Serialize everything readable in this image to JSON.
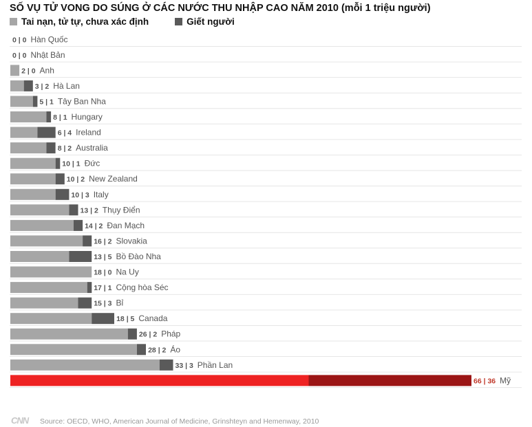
{
  "chart_data": {
    "type": "bar",
    "stacked": true,
    "orientation": "horizontal",
    "title": "SỐ VỤ TỬ VONG DO SÚNG Ở CÁC NƯỚC THU NHẬP CAO NĂM 2010 (mỗi 1 triệu người)",
    "series": [
      {
        "name": "Tai nạn, tử tự, chưa xác định",
        "color": "#a6a6a6",
        "highlight_color": "#ee2222",
        "values": [
          0,
          0,
          2,
          3,
          5,
          8,
          6,
          8,
          10,
          10,
          10,
          13,
          14,
          16,
          13,
          18,
          17,
          15,
          18,
          26,
          28,
          33,
          66
        ]
      },
      {
        "name": "Giết người",
        "color": "#5a5a5a",
        "highlight_color": "#9b1515",
        "values": [
          0,
          0,
          0,
          2,
          1,
          1,
          4,
          2,
          1,
          2,
          3,
          2,
          2,
          2,
          5,
          0,
          1,
          3,
          5,
          2,
          2,
          3,
          36
        ]
      }
    ],
    "categories": [
      "Hàn Quốc",
      "Nhật Bản",
      "Anh",
      "Hà Lan",
      "Tây Ban Nha",
      "Hungary",
      "Ireland",
      "Australia",
      "Đức",
      "New Zealand",
      "Italy",
      "Thụy Điển",
      "Đan Mạch",
      "Slovakia",
      "Bồ Đào Nha",
      "Na Uy",
      "Cộng hòa Séc",
      "Bỉ",
      "Canada",
      "Pháp",
      "Áo",
      "Phần Lan",
      "Mỹ"
    ],
    "highlight_category": "Mỹ",
    "xlim": [
      0,
      102
    ],
    "grid": "horizontal separators"
  },
  "source": "Source: OECD, WHO, American Journal of Medicine, Grinshteyn and Hemenway, 2010",
  "logo": "CNN"
}
